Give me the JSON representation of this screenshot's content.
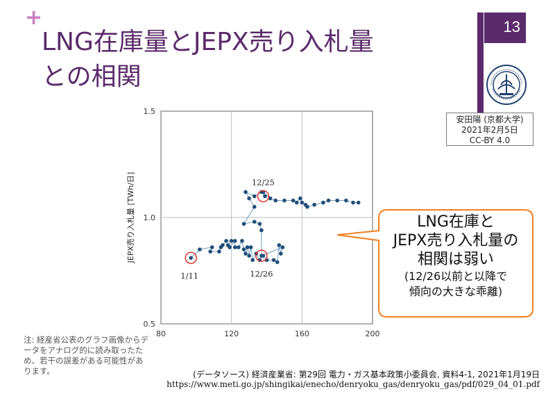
{
  "slide": {
    "title_line1": "LNG在庫量とJEPX売り入札量",
    "title_line2": "との相関",
    "page_number": "13",
    "credit": [
      "安田陽 (京都大学)",
      "2021年2月5日",
      "CC-BY 4.0"
    ],
    "logo_text": "KYOTO UNIVERSITY FOUNDED 1897",
    "callout": {
      "lines": [
        "LNG在庫と",
        "JEPX売り入札量の",
        "相関は弱い"
      ],
      "sub_lines": [
        "(12/26以前と以降で",
        "傾向の大きな乖離)"
      ]
    },
    "note": "注: 経産省公表のグラフ画像からデータをアナログ的に読み取ったため、若干の誤差がある可能性があります。",
    "source_line": "(データソース) 経済産業省: 第29回 電力・ガス基本政策小委員会, 資料4-1, 2021年1月19日",
    "source_url": "https://www.meti.go.jp/shingikai/enecho/denryoku_gas/denryoku_gas/pdf/029_04_01.pdf",
    "colors": {
      "accent": "#5a2a6a",
      "plus": "#c77dbf",
      "callout_border": "#f0801e",
      "series": "#1f4e79",
      "line": "#6d9ec4",
      "highlight": "#e0352b"
    }
  },
  "chart_data": {
    "type": "scatter",
    "title": "",
    "xlabel": "LNG在庫量",
    "ylabel": "JEPX売り入札量 [TWh/日]",
    "xlim": [
      80,
      200
    ],
    "ylim": [
      0.5,
      1.5
    ],
    "x_ticks": [
      "80",
      "120",
      "160",
      "200"
    ],
    "y_ticks": [
      "0.5",
      "1.0",
      "1.5"
    ],
    "grid": true,
    "connected": true,
    "points": [
      {
        "x": 97,
        "y": 0.81
      },
      {
        "x": 102,
        "y": 0.85
      },
      {
        "x": 109,
        "y": 0.86
      },
      {
        "x": 108,
        "y": 0.84
      },
      {
        "x": 113,
        "y": 0.84
      },
      {
        "x": 114,
        "y": 0.86
      },
      {
        "x": 115,
        "y": 0.87
      },
      {
        "x": 117,
        "y": 0.89
      },
      {
        "x": 120,
        "y": 0.89
      },
      {
        "x": 118,
        "y": 0.87
      },
      {
        "x": 119,
        "y": 0.86
      },
      {
        "x": 122,
        "y": 0.89
      },
      {
        "x": 122,
        "y": 0.86
      },
      {
        "x": 124,
        "y": 0.86
      },
      {
        "x": 126,
        "y": 0.89
      },
      {
        "x": 127,
        "y": 0.85
      },
      {
        "x": 128,
        "y": 0.83
      },
      {
        "x": 129,
        "y": 0.86
      },
      {
        "x": 130,
        "y": 0.82
      },
      {
        "x": 131,
        "y": 0.86
      },
      {
        "x": 132,
        "y": 0.8
      },
      {
        "x": 134,
        "y": 0.83
      },
      {
        "x": 136,
        "y": 0.8
      },
      {
        "x": 138,
        "y": 0.82
      },
      {
        "x": 140,
        "y": 0.8
      },
      {
        "x": 144,
        "y": 0.8
      },
      {
        "x": 146,
        "y": 0.79
      },
      {
        "x": 147,
        "y": 0.87
      },
      {
        "x": 148,
        "y": 0.83
      },
      {
        "x": 149,
        "y": 0.86
      },
      {
        "x": 137,
        "y": 0.82
      },
      {
        "x": 137,
        "y": 0.94
      },
      {
        "x": 136,
        "y": 0.97
      },
      {
        "x": 133,
        "y": 0.98
      },
      {
        "x": 127,
        "y": 0.97
      },
      {
        "x": 133,
        "y": 1.05
      },
      {
        "x": 130,
        "y": 1.09
      },
      {
        "x": 128,
        "y": 1.12
      },
      {
        "x": 133,
        "y": 1.1
      },
      {
        "x": 137,
        "y": 1.12
      },
      {
        "x": 139,
        "y": 1.1
      },
      {
        "x": 138,
        "y": 1.12
      },
      {
        "x": 142,
        "y": 1.09
      },
      {
        "x": 145,
        "y": 1.08
      },
      {
        "x": 150,
        "y": 1.08
      },
      {
        "x": 155,
        "y": 1.08
      },
      {
        "x": 157,
        "y": 1.07
      },
      {
        "x": 159,
        "y": 1.09
      },
      {
        "x": 160,
        "y": 1.07
      },
      {
        "x": 162,
        "y": 1.06
      },
      {
        "x": 163,
        "y": 1.05
      },
      {
        "x": 167,
        "y": 1.06
      },
      {
        "x": 172,
        "y": 1.07
      },
      {
        "x": 175,
        "y": 1.08
      },
      {
        "x": 180,
        "y": 1.08
      },
      {
        "x": 185,
        "y": 1.08
      },
      {
        "x": 189,
        "y": 1.07
      },
      {
        "x": 192,
        "y": 1.07
      }
    ],
    "annotations": [
      {
        "label": "1/11",
        "x": 97,
        "y": 0.81
      },
      {
        "label": "12/26",
        "x": 137,
        "y": 0.82
      },
      {
        "label": "12/25",
        "x": 138,
        "y": 1.1
      }
    ]
  }
}
